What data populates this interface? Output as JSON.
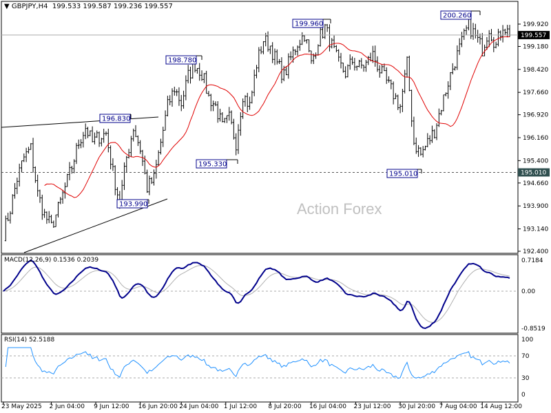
{
  "header": {
    "symbol": "GBPJPY,H4",
    "open": "199.533",
    "high": "199.587",
    "low": "199.236",
    "close": "199.557"
  },
  "watermark": "Action Forex",
  "colors": {
    "bars": "#000000",
    "ma": "#e00000",
    "macd": "#00008b",
    "signal": "#b0b0b0",
    "rsi": "#1e90ff",
    "label_text": "#00008b",
    "current_price_bg": "#000000",
    "level_bg": "#2f4f4f"
  },
  "chart_data": [
    {
      "type": "line",
      "title": "GBPJPY,H4",
      "series_kind": "OHLC bars with moving average",
      "ylim": [
        192.4,
        200.4
      ],
      "y_ticks": [
        "199.920",
        "199.180",
        "198.420",
        "197.660",
        "196.920",
        "196.160",
        "195.400",
        "194.660",
        "193.900",
        "193.140",
        "192.400"
      ],
      "current_price": "199.557",
      "level": "195.010",
      "approx_closes": [
        193.0,
        193.8,
        194.8,
        195.5,
        195.8,
        194.3,
        193.6,
        193.2,
        193.8,
        194.5,
        195.2,
        196.0,
        196.5,
        196.0,
        196.2,
        196.3,
        195.0,
        194.0,
        195.5,
        196.5,
        195.8,
        194.5,
        194.8,
        196.0,
        197.2,
        197.8,
        197.3,
        198.2,
        198.6,
        198.3,
        197.5,
        197.2,
        196.5,
        196.8,
        196.0,
        197.6,
        197.2,
        198.6,
        199.4,
        199.2,
        198.6,
        198.2,
        198.8,
        199.3,
        199.6,
        198.6,
        199.4,
        199.8,
        199.2,
        198.6,
        198.3,
        198.7,
        198.5,
        198.6,
        198.9,
        198.4,
        198.0,
        197.6,
        197.2,
        198.6,
        196.0,
        195.6,
        196.0,
        196.4,
        197.2,
        198.0,
        198.7,
        199.3,
        199.9,
        199.5,
        199.1,
        199.8,
        199.2,
        199.9,
        199.557
      ],
      "annotations": [
        "196.830",
        "198.780",
        "199.960",
        "200.260",
        "195.330",
        "195.010",
        "193.990"
      ],
      "x_labels": [
        "23 May 2025",
        "2 Jun 04:00",
        "9 Jun 12:00",
        "16 Jun 20:00",
        "24 Jun 04:00",
        "1 Jul 12:00",
        "8 Jul 20:00",
        "16 Jul 04:00",
        "23 Jul 12:00",
        "30 Jul 20:00",
        "7 Aug 04:00",
        "14 Aug 12:00"
      ]
    },
    {
      "type": "line",
      "title": "MACD(12,26,9) 0.1536 0.2039",
      "y_ticks": [
        "0.7184",
        "0.00",
        "-0.8519"
      ],
      "ylim": [
        -0.8519,
        0.7184
      ],
      "macd": 0.1536,
      "signal": 0.2039
    },
    {
      "type": "line",
      "title": "RSI(14) 52.5188",
      "y_ticks": [
        "100",
        "70",
        "30",
        "0"
      ],
      "ylim": [
        0,
        100
      ],
      "levels": [
        70,
        30
      ],
      "value": 52.5188
    }
  ]
}
